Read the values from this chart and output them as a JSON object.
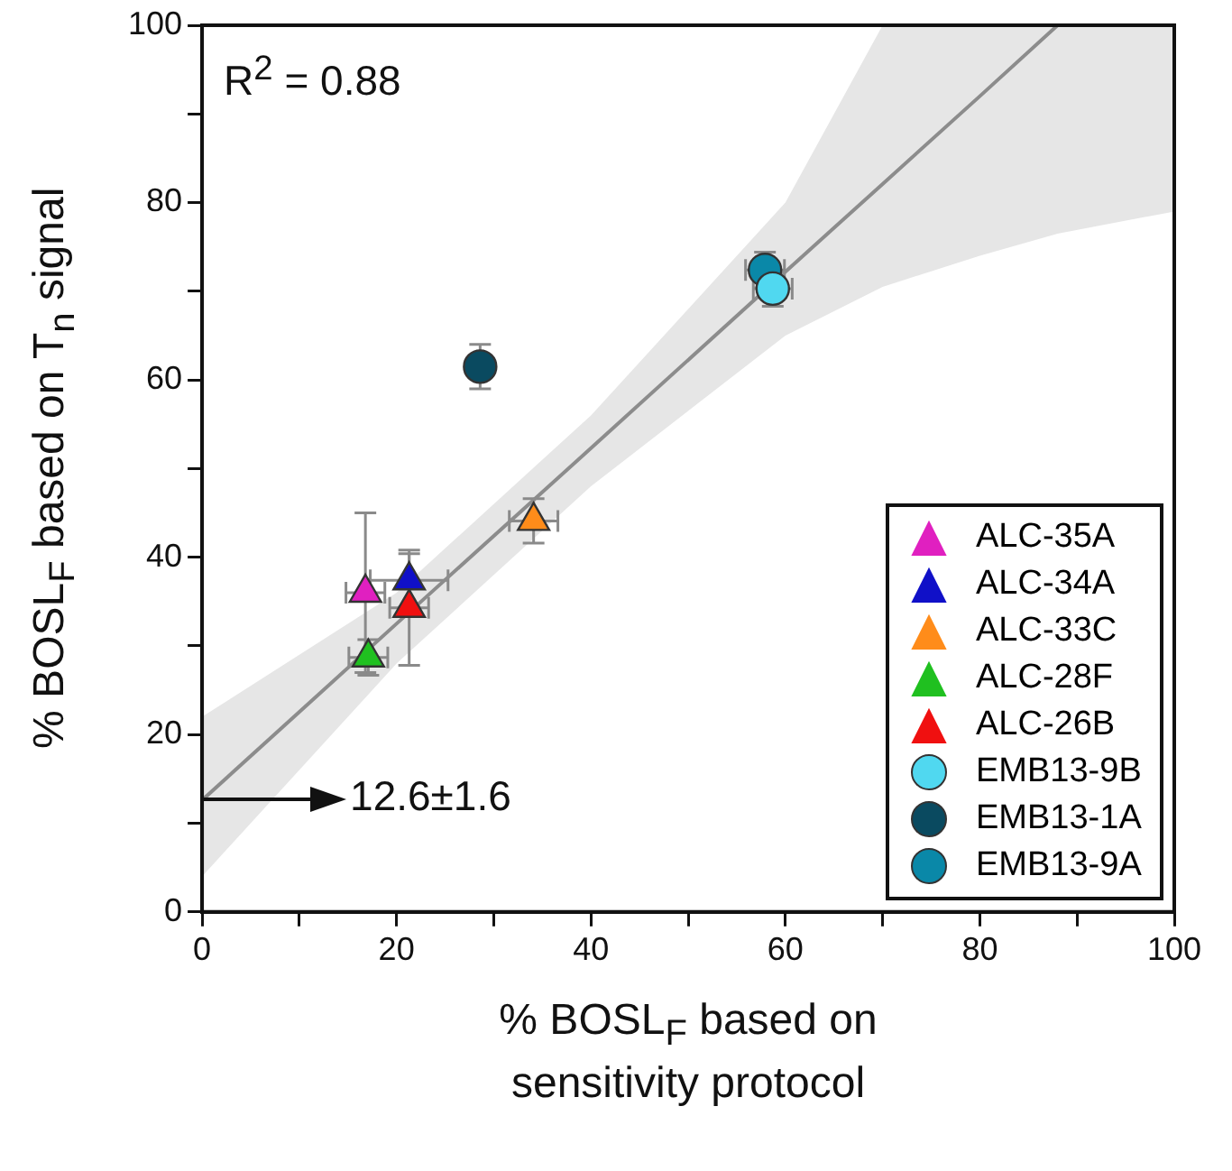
{
  "chart_data": {
    "type": "scatter",
    "xlabel": "% BOSL$_{F}$ based on sensitivity protocol",
    "ylabel": "% BOSL$_{F}$ based on T$_{n}$ signal",
    "xlim": [
      0,
      100
    ],
    "ylim": [
      0,
      100
    ],
    "xticks": [
      0,
      {
        "value": 10,
        "label": null
      },
      20,
      {
        "value": 30,
        "label": null
      },
      40,
      {
        "value": 50,
        "label": null
      },
      60,
      {
        "value": 70,
        "label": null
      },
      80,
      {
        "value": 90,
        "label": null
      },
      100
    ],
    "yticks": [
      0,
      {
        "value": 10,
        "label": null
      },
      20,
      {
        "value": 30,
        "label": null
      },
      40,
      {
        "value": 50,
        "label": null
      },
      60,
      {
        "value": 70,
        "label": null
      },
      80,
      {
        "value": 90,
        "label": null
      },
      100
    ],
    "grid": false,
    "legend": "bottom right",
    "annotations": [
      "R$^{2}$ = 0.88",
      {
        "text": "12.6±1.6",
        "x": 0,
        "y": 12.6
      }
    ],
    "series": [
      {
        "type": "line",
        "color": "#8c8c8c",
        "x": [
          0,
          20,
          40,
          60,
          70,
          80,
          88,
          100
        ],
        "values": [
          12.6,
          32.5,
          52.3,
          72.2,
          82.1,
          92.0,
          100,
          null
        ],
        "lower": [
          4,
          28,
          48,
          65,
          70.5,
          74,
          76.5,
          79
        ],
        "upper": [
          22,
          36,
          56,
          80,
          100,
          100,
          100,
          100
        ],
        "marker": "none"
      },
      {
        "name": "ALC-35A",
        "color": "#e020c0",
        "marker": "triangle",
        "x": [
          16.8
        ],
        "values": [
          36
        ],
        "errors": [
          9
        ],
        "xerrors": [
          2
        ]
      },
      {
        "name": "ALC-34A",
        "color": "#1010c8",
        "marker": "triangle",
        "x": [
          21.3
        ],
        "values": [
          37.4
        ],
        "errors": [
          3
        ],
        "xerrors": [
          4
        ]
      },
      {
        "name": "ALC-33C",
        "color": "#ff8c1a",
        "marker": "triangle",
        "x": [
          34.1
        ],
        "values": [
          44.1
        ],
        "errors": [
          2.5
        ],
        "xerrors": [
          2.5
        ]
      },
      {
        "name": "ALC-28F",
        "color": "#20c020",
        "marker": "triangle",
        "x": [
          17.1
        ],
        "values": [
          28.7
        ],
        "errors": [
          2
        ],
        "xerrors": [
          2
        ]
      },
      {
        "name": "ALC-26B",
        "color": "#f01010",
        "marker": "triangle",
        "x": [
          21.3
        ],
        "values": [
          34.3
        ],
        "errors": [
          6.5
        ],
        "xerrors": [
          2
        ]
      },
      {
        "name": "EMB13-9B",
        "color": "#50d8f0",
        "marker": "circle",
        "x": [
          58.7
        ],
        "values": [
          70.3
        ],
        "errors": [
          2
        ],
        "xerrors": [
          2
        ]
      },
      {
        "name": "EMB13-1A",
        "color": "#0a4a60",
        "marker": "circle",
        "x": [
          28.6
        ],
        "values": [
          61.5
        ],
        "errors": [
          2.5
        ]
      },
      {
        "name": "EMB13-9A",
        "color": "#0a88a8",
        "marker": "circle",
        "x": [
          57.9
        ],
        "values": [
          72.4
        ],
        "errors": [
          2
        ],
        "xerrors": [
          2
        ]
      }
    ]
  }
}
